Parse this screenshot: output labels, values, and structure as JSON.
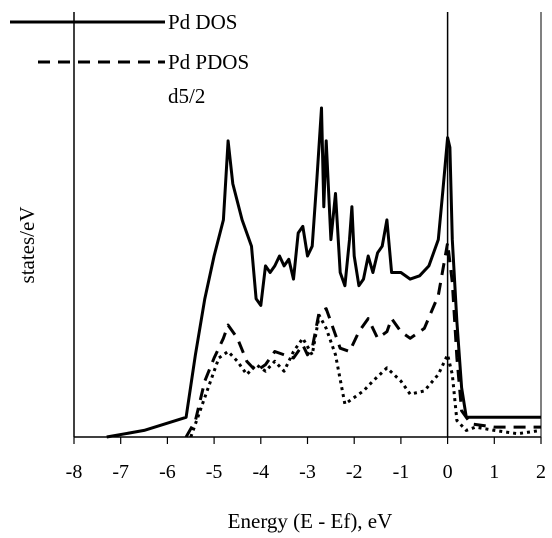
{
  "chart_data": {
    "type": "line",
    "title": "",
    "xlabel": "Energy (E - Ef), eV",
    "ylabel": "states/eV",
    "xlim": [
      -8,
      2
    ],
    "ylim": [
      0,
      1
    ],
    "x_ticks": [
      "-8",
      "-7",
      "-6",
      "-5",
      "-4",
      "-3",
      "-2",
      "-1",
      "0",
      "1",
      "2"
    ],
    "y_ticks_shown": false,
    "grid": false,
    "reference_line_x": 0,
    "legend_position": "top-left",
    "legend": [
      {
        "label": "Pd DOS",
        "style": "solid"
      },
      {
        "label": "Pd PDOS",
        "style": "dashed"
      },
      {
        "label": "d5/2",
        "style": "none"
      }
    ],
    "series": [
      {
        "name": "Pd DOS",
        "style": "solid",
        "color": "#000000",
        "points": [
          [
            -7.3,
            0.0
          ],
          [
            -6.5,
            0.02
          ],
          [
            -5.6,
            0.06
          ],
          [
            -5.4,
            0.25
          ],
          [
            -5.2,
            0.42
          ],
          [
            -5.0,
            0.55
          ],
          [
            -4.8,
            0.66
          ],
          [
            -4.7,
            0.9
          ],
          [
            -4.6,
            0.77
          ],
          [
            -4.4,
            0.66
          ],
          [
            -4.2,
            0.58
          ],
          [
            -4.1,
            0.42
          ],
          [
            -4.0,
            0.4
          ],
          [
            -3.9,
            0.52
          ],
          [
            -3.8,
            0.5
          ],
          [
            -3.7,
            0.52
          ],
          [
            -3.6,
            0.55
          ],
          [
            -3.5,
            0.52
          ],
          [
            -3.4,
            0.54
          ],
          [
            -3.3,
            0.48
          ],
          [
            -3.2,
            0.62
          ],
          [
            -3.1,
            0.64
          ],
          [
            -3.0,
            0.55
          ],
          [
            -2.9,
            0.58
          ],
          [
            -2.8,
            0.78
          ],
          [
            -2.7,
            1.0
          ],
          [
            -2.65,
            0.7
          ],
          [
            -2.6,
            0.9
          ],
          [
            -2.5,
            0.6
          ],
          [
            -2.4,
            0.74
          ],
          [
            -2.3,
            0.5
          ],
          [
            -2.2,
            0.46
          ],
          [
            -2.1,
            0.6
          ],
          [
            -2.05,
            0.7
          ],
          [
            -2.0,
            0.55
          ],
          [
            -1.9,
            0.46
          ],
          [
            -1.8,
            0.48
          ],
          [
            -1.7,
            0.55
          ],
          [
            -1.6,
            0.5
          ],
          [
            -1.5,
            0.56
          ],
          [
            -1.4,
            0.58
          ],
          [
            -1.3,
            0.66
          ],
          [
            -1.2,
            0.5
          ],
          [
            -1.0,
            0.5
          ],
          [
            -0.8,
            0.48
          ],
          [
            -0.6,
            0.49
          ],
          [
            -0.4,
            0.52
          ],
          [
            -0.2,
            0.6
          ],
          [
            -0.1,
            0.75
          ],
          [
            0.0,
            0.91
          ],
          [
            0.05,
            0.88
          ],
          [
            0.1,
            0.6
          ],
          [
            0.2,
            0.35
          ],
          [
            0.3,
            0.15
          ],
          [
            0.4,
            0.06
          ],
          [
            2.0,
            0.06
          ]
        ]
      },
      {
        "name": "Pd PDOS",
        "style": "dashed",
        "color": "#000000",
        "points": [
          [
            -5.6,
            0.0
          ],
          [
            -5.4,
            0.05
          ],
          [
            -5.2,
            0.17
          ],
          [
            -5.0,
            0.24
          ],
          [
            -4.8,
            0.3
          ],
          [
            -4.7,
            0.34
          ],
          [
            -4.5,
            0.3
          ],
          [
            -4.3,
            0.23
          ],
          [
            -4.1,
            0.2
          ],
          [
            -3.9,
            0.22
          ],
          [
            -3.7,
            0.26
          ],
          [
            -3.5,
            0.25
          ],
          [
            -3.3,
            0.24
          ],
          [
            -3.1,
            0.28
          ],
          [
            -3.0,
            0.25
          ],
          [
            -2.9,
            0.27
          ],
          [
            -2.75,
            0.38
          ],
          [
            -2.6,
            0.39
          ],
          [
            -2.5,
            0.35
          ],
          [
            -2.3,
            0.27
          ],
          [
            -2.1,
            0.26
          ],
          [
            -1.9,
            0.32
          ],
          [
            -1.7,
            0.36
          ],
          [
            -1.5,
            0.3
          ],
          [
            -1.3,
            0.32
          ],
          [
            -1.2,
            0.36
          ],
          [
            -1.0,
            0.32
          ],
          [
            -0.8,
            0.3
          ],
          [
            -0.5,
            0.33
          ],
          [
            -0.2,
            0.43
          ],
          [
            0.0,
            0.59
          ],
          [
            0.1,
            0.47
          ],
          [
            0.2,
            0.24
          ],
          [
            0.3,
            0.08
          ],
          [
            0.5,
            0.04
          ],
          [
            1.0,
            0.03
          ],
          [
            2.0,
            0.03
          ]
        ]
      },
      {
        "name": "",
        "style": "dotted",
        "color": "#000000",
        "points": [
          [
            -5.5,
            0.0
          ],
          [
            -5.3,
            0.08
          ],
          [
            -5.1,
            0.16
          ],
          [
            -4.9,
            0.24
          ],
          [
            -4.7,
            0.26
          ],
          [
            -4.5,
            0.23
          ],
          [
            -4.3,
            0.19
          ],
          [
            -4.1,
            0.22
          ],
          [
            -3.9,
            0.2
          ],
          [
            -3.7,
            0.23
          ],
          [
            -3.5,
            0.2
          ],
          [
            -3.3,
            0.26
          ],
          [
            -3.1,
            0.3
          ],
          [
            -2.9,
            0.25
          ],
          [
            -2.75,
            0.37
          ],
          [
            -2.6,
            0.33
          ],
          [
            -2.4,
            0.25
          ],
          [
            -2.2,
            0.1
          ],
          [
            -2.0,
            0.12
          ],
          [
            -1.8,
            0.14
          ],
          [
            -1.6,
            0.17
          ],
          [
            -1.3,
            0.21
          ],
          [
            -1.0,
            0.17
          ],
          [
            -0.8,
            0.13
          ],
          [
            -0.5,
            0.14
          ],
          [
            -0.2,
            0.19
          ],
          [
            0.0,
            0.25
          ],
          [
            0.1,
            0.19
          ],
          [
            0.2,
            0.05
          ],
          [
            0.4,
            0.02
          ],
          [
            0.6,
            0.03
          ],
          [
            1.0,
            0.02
          ],
          [
            1.5,
            0.01
          ],
          [
            2.0,
            0.02
          ]
        ]
      }
    ]
  }
}
